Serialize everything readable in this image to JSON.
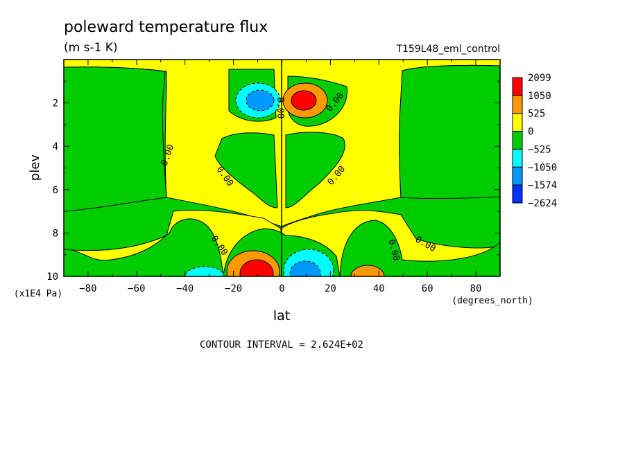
{
  "chart_data": {
    "type": "heatmap",
    "subtype": "filled-contour",
    "title": "poleward temperature flux",
    "units": "(m s-1 K)",
    "run_label": "T159L48_eml_control",
    "xlabel": "lat",
    "xunits": "(degrees_north)",
    "ylabel": "plev",
    "yunits": "(x1E4 Pa)",
    "xlim": [
      -90,
      90
    ],
    "ylim": [
      10,
      0
    ],
    "y_axis_direction": "downward",
    "x_ticks": [
      -80,
      -60,
      -40,
      -20,
      0,
      20,
      40,
      60,
      80
    ],
    "y_ticks": [
      2,
      4,
      6,
      8,
      10
    ],
    "contour_interval_label": "CONTOUR INTERVAL = 2.624E+02",
    "contour_label": "0.00",
    "contour_label_note": "zero contour labelled at several points",
    "colorbar": {
      "labels": [
        "2099",
        "1050",
        "525",
        "0",
        "-525",
        "-1050",
        "-1574",
        "-2624"
      ],
      "colors": [
        "#ff0000",
        "#ff9900",
        "#ffff00",
        "#00cc00",
        "#00ffff",
        "#0099ff",
        "#0033ff"
      ]
    },
    "features": [
      {
        "sign": "negative",
        "lat": -12,
        "plev": 2.0,
        "peak": "-1574",
        "region": "upper troposphere, SH"
      },
      {
        "sign": "positive",
        "lat": 10,
        "plev": 2.0,
        "peak": "2099",
        "region": "upper troposphere, NH"
      },
      {
        "sign": "positive",
        "lat": -8,
        "plev": 9.7,
        "peak": "2099",
        "region": "lower troposphere, SH"
      },
      {
        "sign": "negative",
        "lat": 10,
        "plev": 9.7,
        "peak": "-1574",
        "region": "lower troposphere, NH"
      },
      {
        "sign": "negative",
        "lat": -35,
        "plev": 9.8,
        "peak": "-1050",
        "region": "surface, SH midlatitudes"
      },
      {
        "sign": "positive",
        "lat": 35,
        "plev": 9.8,
        "peak": "1050",
        "region": "surface, NH midlatitudes"
      }
    ]
  }
}
